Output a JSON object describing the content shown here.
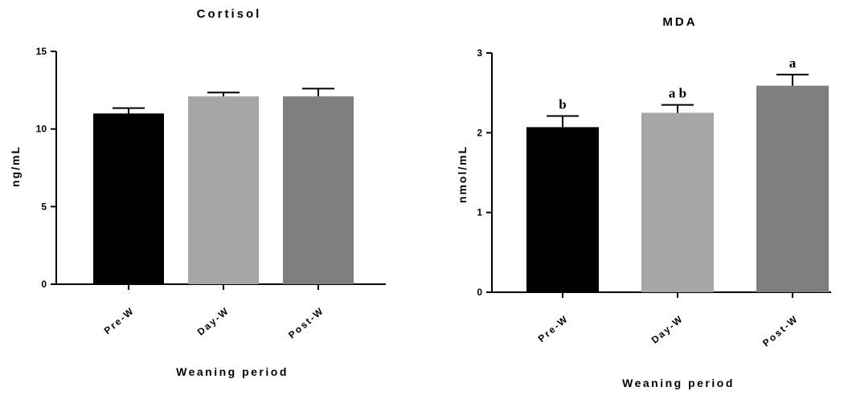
{
  "chart_data": [
    {
      "type": "bar",
      "title": "Cortisol",
      "ylabel": "ng/mL",
      "xlabel": "Weaning period",
      "categories": [
        "Pre-W",
        "Day-W",
        "Post-W"
      ],
      "values": [
        11.0,
        12.1,
        12.1
      ],
      "errors": [
        0.35,
        0.25,
        0.5
      ],
      "annotations": [],
      "ylim": [
        0,
        15
      ],
      "yticks": [
        0,
        5,
        10,
        15
      ],
      "colors": [
        "#000000",
        "#a6a6a8",
        "#7f7f7f"
      ],
      "grid": false
    },
    {
      "type": "bar",
      "title": "MDA",
      "ylabel": "nmol/mL",
      "xlabel": "Weaning period",
      "categories": [
        "Pre-W",
        "Day-W",
        "Post-W"
      ],
      "values": [
        2.07,
        2.25,
        2.59
      ],
      "errors": [
        0.14,
        0.1,
        0.14
      ],
      "annotations": [
        "b",
        "ab",
        "a"
      ],
      "ylim": [
        0,
        3
      ],
      "yticks": [
        0,
        1,
        2,
        3
      ],
      "colors": [
        "#000000",
        "#a6a6a8",
        "#7f7f7f"
      ],
      "grid": false
    }
  ]
}
